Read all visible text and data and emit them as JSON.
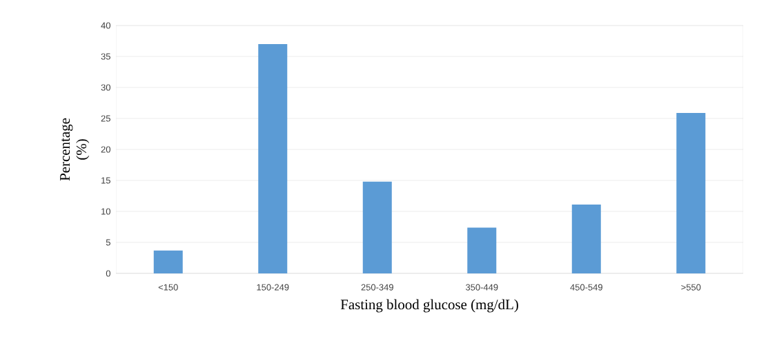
{
  "chart_data": {
    "type": "bar",
    "xlabel": "Fasting blood glucose (mg/dL)",
    "ylabel": "Percentage (%)",
    "categories": [
      "<150",
      "150-249",
      "250-349",
      "350-449",
      "450-549",
      ">550"
    ],
    "values": [
      3.7,
      37.0,
      14.8,
      7.4,
      11.1,
      25.9
    ],
    "color": "#5b9bd5",
    "ylim": [
      0,
      40
    ],
    "yticks": [
      0,
      5,
      10,
      15,
      20,
      25,
      30,
      35,
      40
    ],
    "grid": "y"
  }
}
